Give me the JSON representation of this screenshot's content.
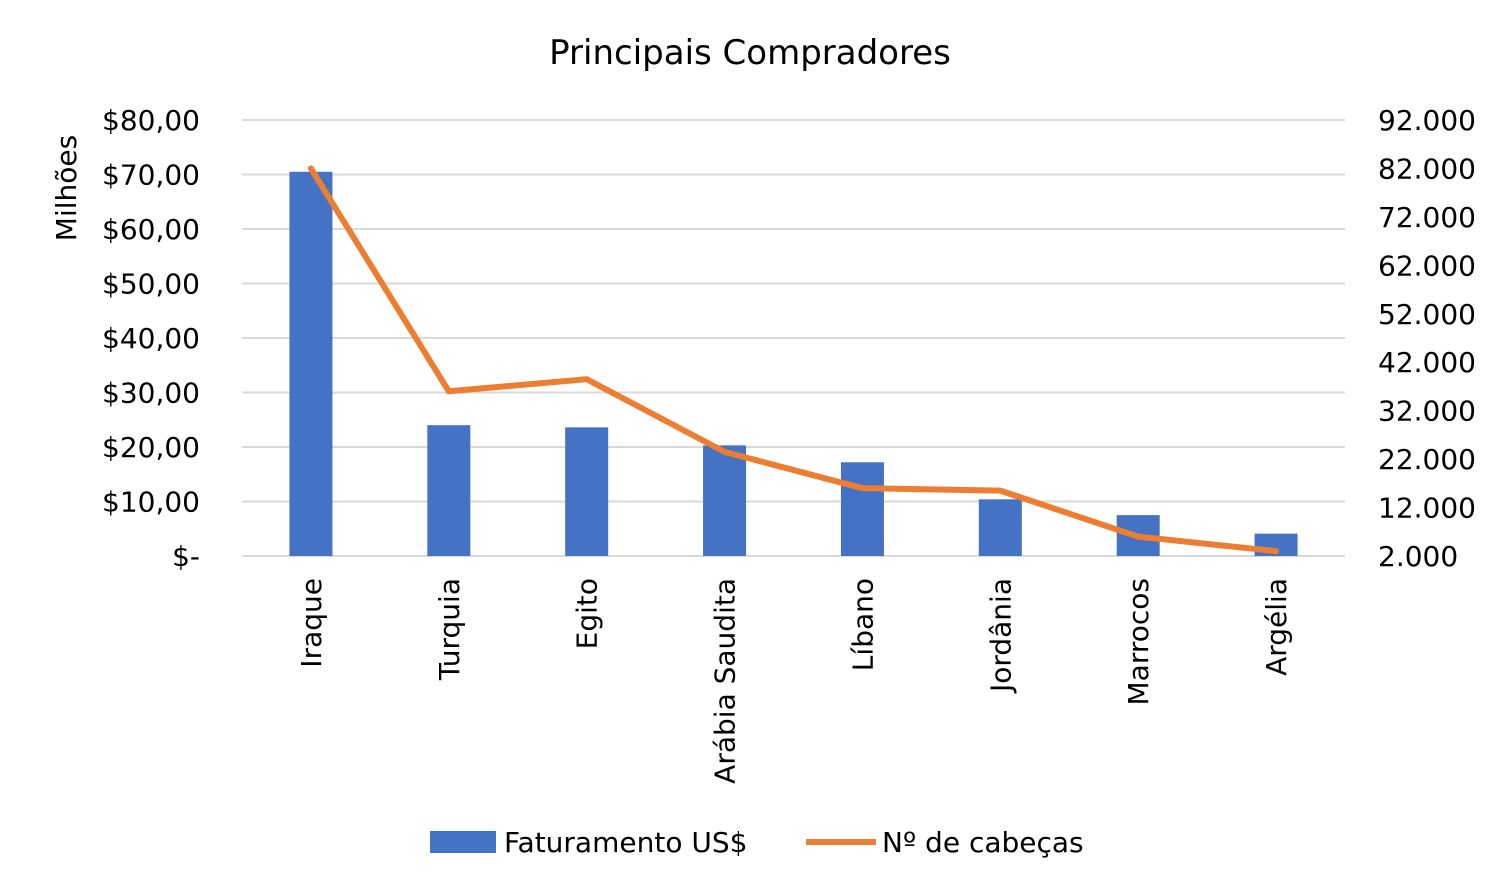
{
  "chart_data": {
    "type": "bar",
    "title": "Principais Compradores",
    "categories": [
      "Iraque",
      "Turquia",
      "Egito",
      "Arábia Saudita",
      "Líbano",
      "Jordânia",
      "Marrocos",
      "Argélia"
    ],
    "series": [
      {
        "name": "Faturamento US$",
        "type": "bar",
        "axis": "left",
        "color": "#4472c4",
        "values": [
          70.5,
          24.0,
          23.6,
          20.3,
          17.2,
          10.4,
          7.5,
          4.1
        ]
      },
      {
        "name": "Nº de cabeças",
        "type": "line",
        "axis": "right",
        "color": "#ed7d31",
        "values": [
          82000,
          36000,
          38500,
          23500,
          16000,
          15500,
          6000,
          3000
        ]
      }
    ],
    "y_left": {
      "label": "Milhões",
      "ylim": [
        0,
        80
      ],
      "ticks": [
        0,
        10,
        20,
        30,
        40,
        50,
        60,
        70,
        80
      ],
      "tick_labels": [
        "$-",
        "$10,00",
        "$20,00",
        "$30,00",
        "$40,00",
        "$50,00",
        "$60,00",
        "$70,00",
        "$80,00"
      ]
    },
    "y_right": {
      "ylim": [
        2000,
        92000
      ],
      "ticks": [
        2000,
        12000,
        22000,
        32000,
        42000,
        52000,
        62000,
        72000,
        82000,
        92000
      ],
      "tick_labels": [
        "2.000",
        "12.000",
        "22.000",
        "32.000",
        "42.000",
        "52.000",
        "62.000",
        "72.000",
        "82.000",
        "92.000"
      ]
    },
    "grid": true,
    "legend": "bottom"
  }
}
